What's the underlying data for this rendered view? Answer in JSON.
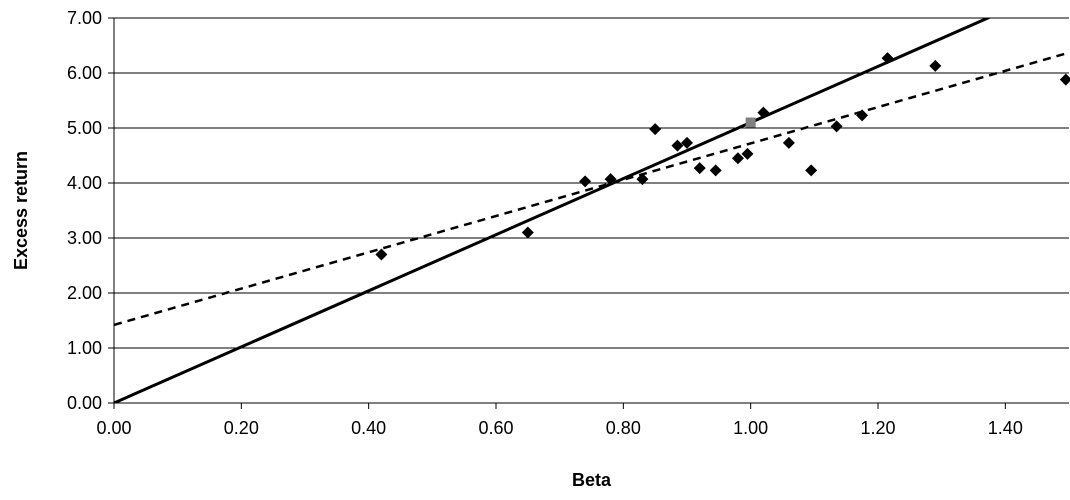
{
  "chart_data": {
    "type": "scatter",
    "xlabel": "Beta",
    "ylabel": "Excess return",
    "xlim": [
      0,
      1.5
    ],
    "ylim": [
      0,
      7
    ],
    "x_ticks": [
      "0.00",
      "0.20",
      "0.40",
      "0.60",
      "0.80",
      "1.00",
      "1.20",
      "1.40"
    ],
    "y_ticks": [
      "0.00",
      "1.00",
      "2.00",
      "3.00",
      "4.00",
      "5.00",
      "6.00",
      "7.00"
    ],
    "grid": "horizontal",
    "series": [
      {
        "marker": "diamond",
        "color": "#000000",
        "points": [
          {
            "x": 0.42,
            "y": 2.7
          },
          {
            "x": 0.65,
            "y": 3.1
          },
          {
            "x": 0.74,
            "y": 4.03
          },
          {
            "x": 0.78,
            "y": 4.07
          },
          {
            "x": 0.83,
            "y": 4.07
          },
          {
            "x": 0.85,
            "y": 4.98
          },
          {
            "x": 0.885,
            "y": 4.68
          },
          {
            "x": 0.9,
            "y": 4.73
          },
          {
            "x": 0.92,
            "y": 4.27
          },
          {
            "x": 0.945,
            "y": 4.23
          },
          {
            "x": 0.98,
            "y": 4.45
          },
          {
            "x": 0.995,
            "y": 4.53
          },
          {
            "x": 1.02,
            "y": 5.28
          },
          {
            "x": 1.06,
            "y": 4.73
          },
          {
            "x": 1.095,
            "y": 4.23
          },
          {
            "x": 1.135,
            "y": 5.03
          },
          {
            "x": 1.175,
            "y": 5.23
          },
          {
            "x": 1.215,
            "y": 6.27
          },
          {
            "x": 1.29,
            "y": 6.13
          },
          {
            "x": 1.495,
            "y": 5.88
          }
        ]
      },
      {
        "marker": "square",
        "color": "#808080",
        "points": [
          {
            "x": 1.0,
            "y": 5.1
          }
        ]
      }
    ],
    "lines": [
      {
        "style": "solid",
        "color": "#000000",
        "intercept": 0.0,
        "slope": 5.1
      },
      {
        "style": "dashed",
        "color": "#000000",
        "intercept": 1.42,
        "slope": 3.3
      }
    ]
  }
}
